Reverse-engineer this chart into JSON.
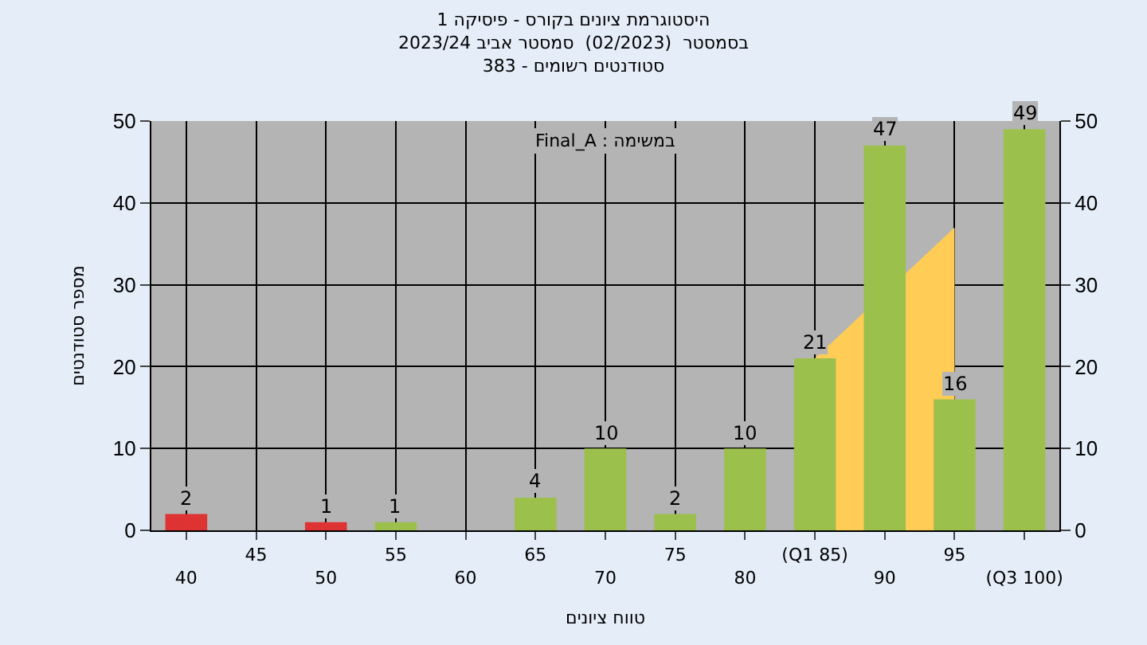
{
  "chart_data": {
    "type": "bar",
    "title": "היסטוגרמת ציונים בקורס - פיסיקה 1\nבסמסטר  (02/2023)  סמסטר אביב 2023/24\nסטודנטים רשומים - 383",
    "xlabel": "טווח ציונים",
    "ylabel": "מספר סטודנטים",
    "annotations": [
      "Final_A : במשימה"
    ],
    "categories": [
      "40",
      "45",
      "50",
      "55",
      "60",
      "65",
      "70",
      "75",
      "80",
      "(Q1 85)",
      "90",
      "95",
      "(Q3 100)"
    ],
    "series": [
      {
        "type": "area",
        "color": "#ffcc55",
        "values": [
          null,
          null,
          null,
          null,
          null,
          null,
          null,
          null,
          null,
          21,
          null,
          37,
          null
        ]
      },
      {
        "colors": [
          "#dd3333",
          "#dd3333",
          "#dd3333",
          "#9cc04c",
          "#9cc04c",
          "#9cc04c",
          "#9cc04c",
          "#9cc04c",
          "#9cc04c",
          "#9cc04c",
          "#9cc04c",
          "#9cc04c",
          "#9cc04c"
        ],
        "values": [
          2,
          null,
          1,
          1,
          null,
          4,
          10,
          2,
          10,
          21,
          47,
          16,
          49
        ],
        "data_labels": true
      }
    ],
    "ylim": [
      0,
      50
    ],
    "yticks": [
      0,
      10,
      20,
      30,
      40,
      50
    ],
    "y2lim": [
      0,
      50
    ],
    "y2ticks": [
      0,
      10,
      20,
      30,
      40,
      50
    ],
    "grid": true
  }
}
